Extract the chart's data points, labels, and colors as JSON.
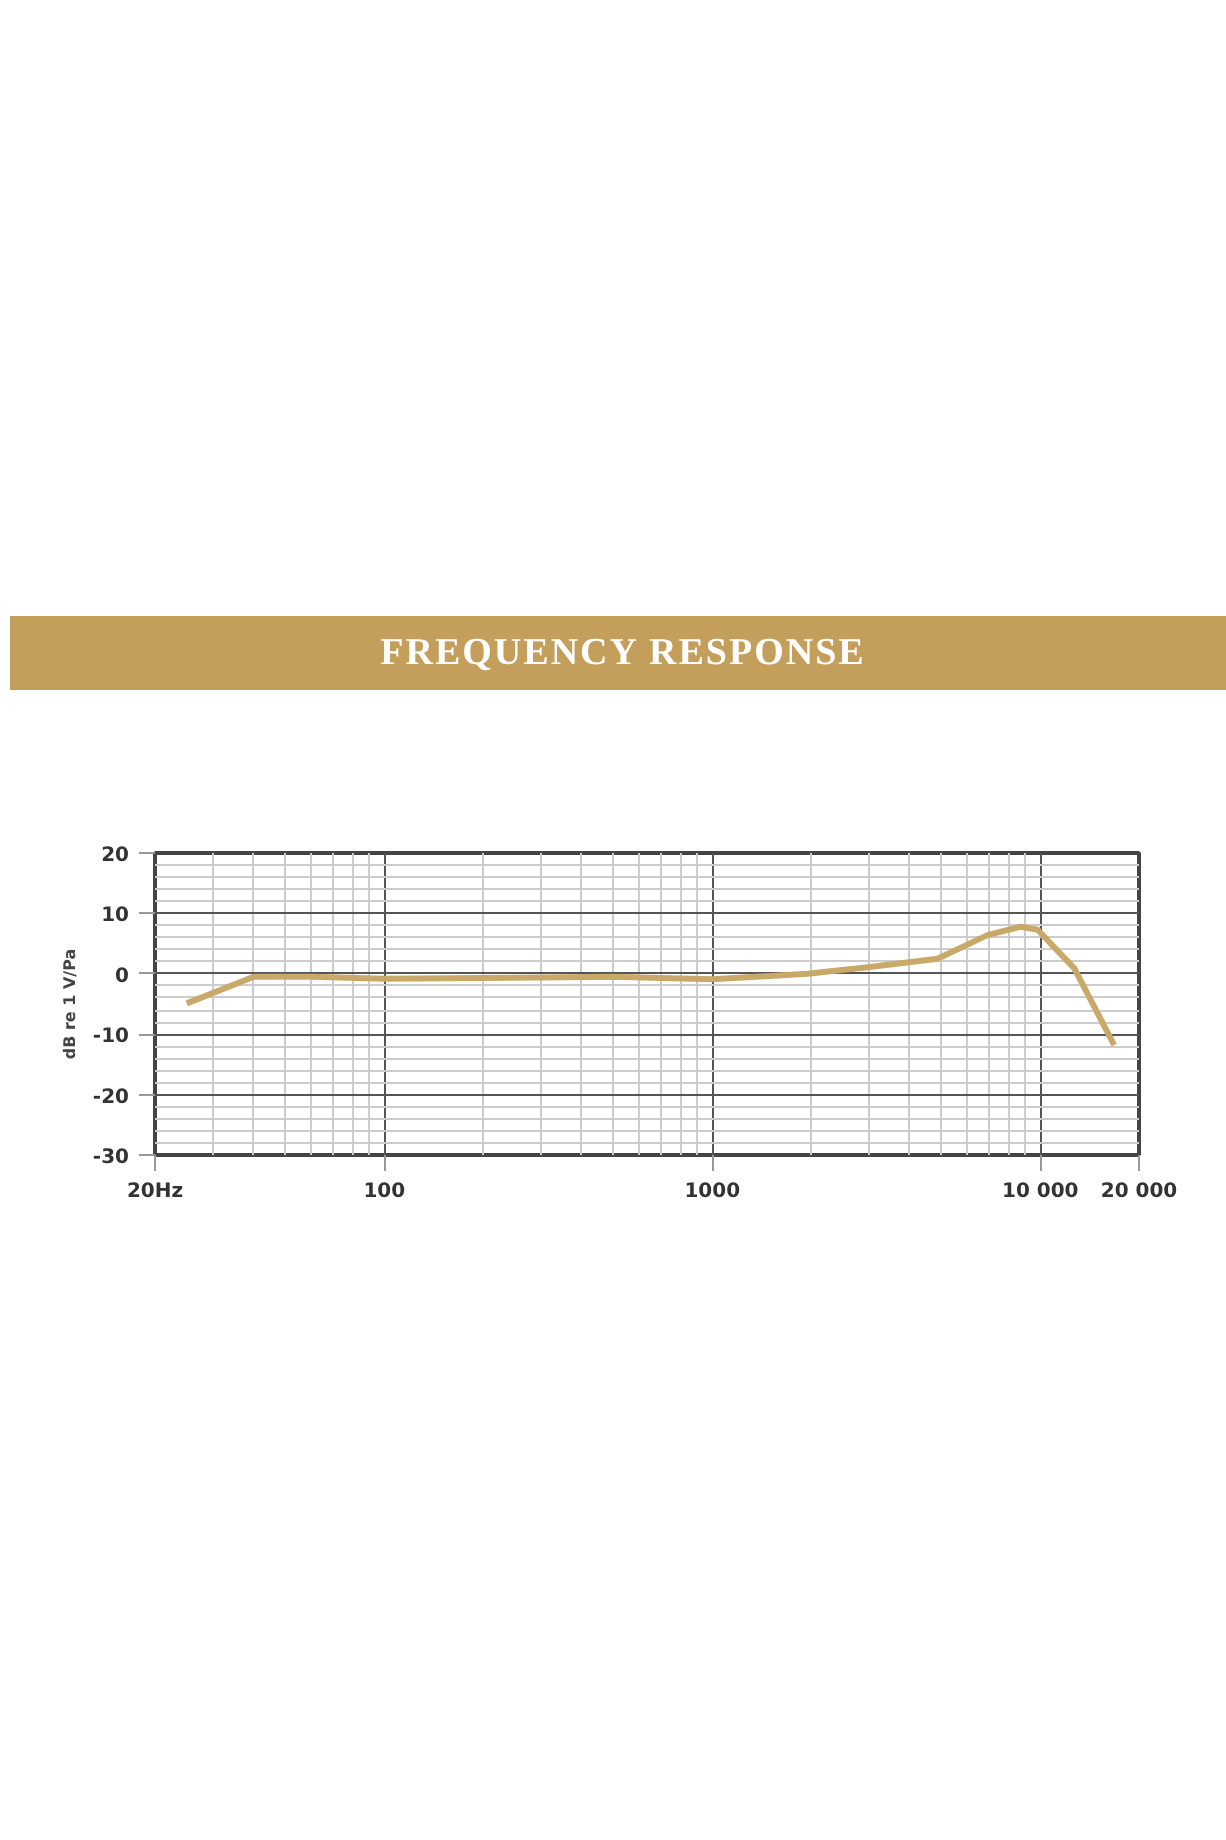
{
  "chart_data": {
    "type": "line",
    "title": "FREQUENCY RESPONSE",
    "ylabel": "dB re 1 V/Pa",
    "log": "x",
    "grid": true,
    "marker": "none",
    "line_style": "solid",
    "xlim": [
      20,
      20000
    ],
    "ylim": [
      -30,
      20
    ],
    "xticks": [
      {
        "value": 20,
        "label": "20Hz"
      },
      100,
      1000,
      {
        "value": 10000,
        "label": "10 000"
      },
      {
        "value": 20000,
        "label": "20 000"
      }
    ],
    "yticks": [
      -30,
      -20,
      -10,
      0,
      10,
      20
    ],
    "series": [
      {
        "color": "#c9a96a",
        "x": [
          25,
          40,
          60,
          100,
          300,
          500,
          700,
          1000,
          1950,
          2980,
          4860,
          6900,
          8740,
          9820,
          12700,
          16800
        ],
        "values": [
          -4.9,
          -0.5,
          -0.5,
          -0.8,
          -0.6,
          -0.5,
          -0.7,
          -0.9,
          0,
          1.1,
          2.5,
          6.4,
          7.8,
          7.3,
          0.9,
          -11.8
        ]
      }
    ]
  }
}
